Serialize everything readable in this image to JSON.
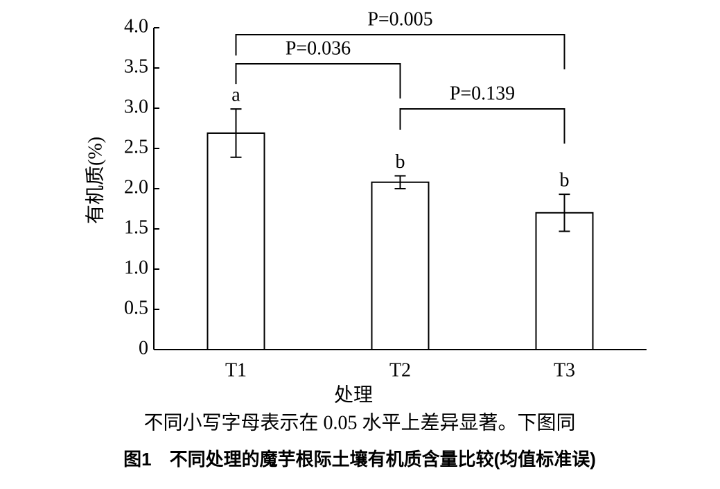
{
  "chart_data": {
    "type": "bar",
    "xlabel": "处理",
    "ylabel": "有机质(%)",
    "categories": [
      "T1",
      "T2",
      "T3"
    ],
    "values": [
      2.69,
      2.08,
      1.7
    ],
    "errors": [
      0.3,
      0.08,
      0.23
    ],
    "letters": [
      "a",
      "b",
      "b"
    ],
    "color": "#ffffff",
    "edgecolor": "#000000",
    "ylim": [
      0,
      4
    ],
    "yticks": [
      0,
      {
        "value": 0.5,
        "label": "0.5"
      },
      {
        "value": 1,
        "label": "1.0"
      },
      {
        "value": 1.5,
        "label": "1.5"
      },
      {
        "value": 2,
        "label": "2.0"
      },
      {
        "value": 2.5,
        "label": "2.5"
      },
      {
        "value": 3,
        "label": "3.0"
      },
      {
        "value": 3.5,
        "label": "3.5"
      },
      {
        "value": 4,
        "label": "4.0"
      }
    ],
    "grid": false,
    "comparisons": [
      {
        "from": "T1",
        "to": "T3",
        "label": "P=0.005"
      },
      {
        "from": "T1",
        "to": "T2",
        "label": "P=0.036"
      },
      {
        "from": "T2",
        "to": "T3",
        "label": "P=0.139"
      }
    ],
    "note": "不同小写字母表示在 0.05 水平上差异显著。下图同",
    "caption": "图1　不同处理的魔芋根际土壤有机质含量比较(均值标准误)"
  }
}
